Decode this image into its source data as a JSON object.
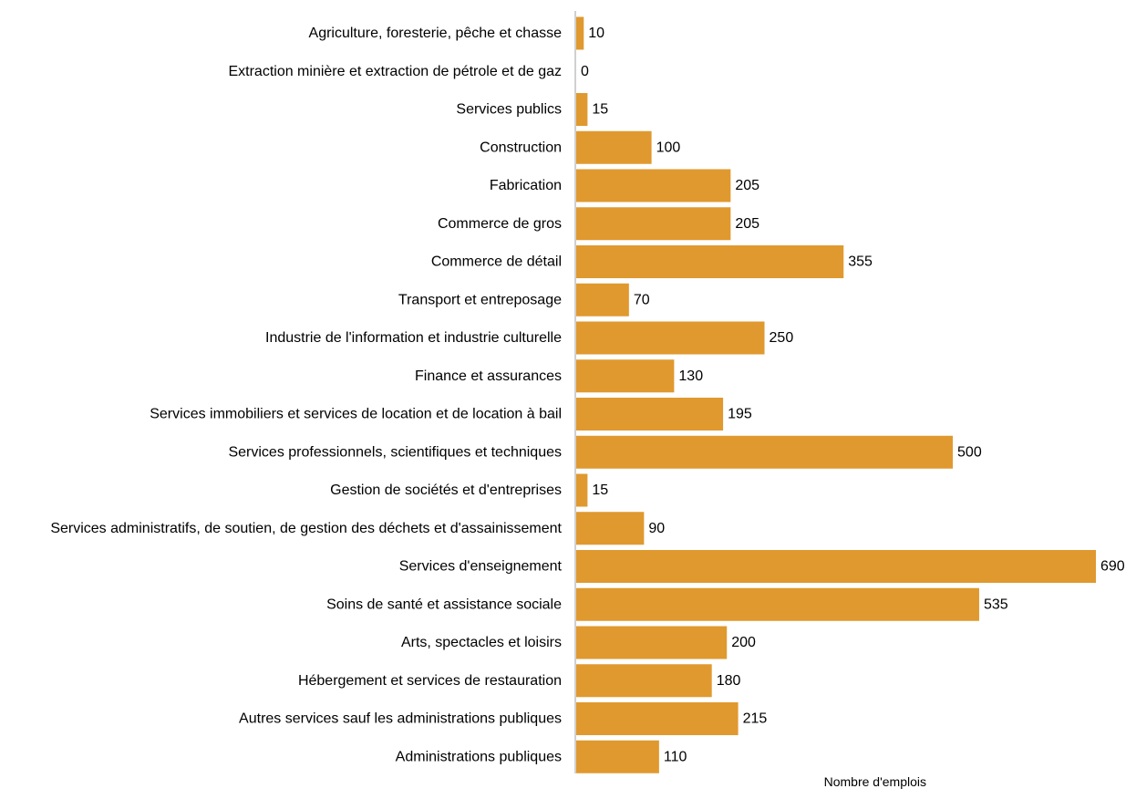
{
  "chart_data": {
    "type": "bar",
    "orientation": "horizontal",
    "categories": [
      "Agriculture, foresterie, pêche et chasse",
      "Extraction minière et extraction de pétrole et de gaz",
      "Services publics",
      "Construction",
      "Fabrication",
      "Commerce de gros",
      "Commerce de détail",
      "Transport et entreposage",
      "Industrie de l'information et industrie culturelle",
      "Finance et assurances",
      "Services immobiliers et services de location et de location à bail",
      "Services professionnels, scientifiques et techniques",
      "Gestion de sociétés et d'entreprises",
      "Services administratifs, de soutien, de gestion des déchets et d'assainissement",
      "Services d'enseignement",
      "Soins de santé et assistance sociale",
      "Arts, spectacles et loisirs",
      "Hébergement et services de restauration",
      "Autres services sauf les administrations publiques",
      "Administrations publiques"
    ],
    "values": [
      10,
      0,
      15,
      100,
      205,
      205,
      355,
      70,
      250,
      130,
      195,
      500,
      15,
      90,
      690,
      535,
      200,
      180,
      215,
      110
    ],
    "xlabel": "Nombre d'emplois",
    "ylabel": "",
    "xlim": [
      0,
      690
    ],
    "grid": false,
    "legend": "none",
    "colors": {
      "bar": "#E0992F",
      "axis": "#A0A0A0",
      "text": "#000000"
    }
  }
}
